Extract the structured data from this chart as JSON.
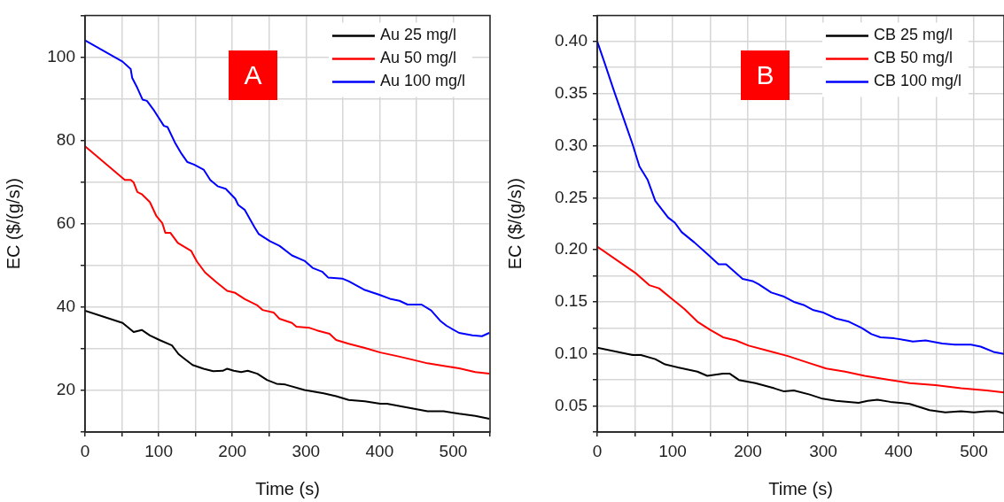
{
  "chart_data": [
    {
      "type": "line",
      "xlabel": "Time (s)",
      "ylabel": "EC ($/(g/s))",
      "annotations": [
        "A"
      ],
      "legend": "top right",
      "grid": true,
      "xlim": [
        0,
        550
      ],
      "ylim": [
        10,
        110
      ],
      "xticks": [
        0,
        {
          "value": 50,
          "label": null
        },
        100,
        {
          "value": 150,
          "label": null
        },
        200,
        {
          "value": 250,
          "label": null
        },
        300,
        {
          "value": 350,
          "label": null
        },
        400,
        {
          "value": 450,
          "label": null
        },
        500,
        {
          "value": 550,
          "label": null
        }
      ],
      "yticks": [
        {
          "value": 10,
          "label": null
        },
        20,
        {
          "value": 30,
          "label": null
        },
        40,
        {
          "value": 50,
          "label": null
        },
        60,
        {
          "value": 70,
          "label": null
        },
        80,
        {
          "value": 90,
          "label": null
        },
        100,
        {
          "value": 110,
          "label": null
        }
      ],
      "series": [
        {
          "name": "Au 25 mg/l",
          "color": "#000000",
          "x": [
            0,
            51,
            66,
            77,
            88,
            101,
            118,
            127,
            135,
            146,
            161,
            174,
            187,
            193,
            202,
            212,
            221,
            234,
            247,
            260,
            272,
            298,
            324,
            341,
            358,
            380,
            401,
            410,
            444,
            465,
            487,
            508,
            530,
            549
          ],
          "values": [
            39.1,
            36.2,
            34,
            34.5,
            33.2,
            32.1,
            30.8,
            28.7,
            27.6,
            26.1,
            25.2,
            24.6,
            24.7,
            25.2,
            24.7,
            24.4,
            24.7,
            24,
            22.5,
            21.6,
            21.4,
            20.1,
            19.3,
            18.6,
            17.7,
            17.4,
            16.8,
            16.8,
            15.7,
            15,
            15,
            14.4,
            13.9,
            13.2
          ]
        },
        {
          "name": "Au 50 mg/l",
          "color": "#ff0000",
          "x": [
            0,
            54,
            62,
            66,
            71,
            77,
            88,
            97,
            105,
            109,
            116,
            126,
            144,
            152,
            163,
            178,
            193,
            204,
            217,
            234,
            241,
            256,
            264,
            281,
            287,
            305,
            315,
            332,
            341,
            358,
            380,
            401,
            422,
            444,
            465,
            487,
            508,
            530,
            549
          ],
          "values": [
            78.6,
            70.5,
            70.5,
            69.9,
            67.6,
            67.1,
            65.2,
            61.8,
            60.1,
            57.8,
            57.8,
            55.4,
            53.5,
            50.9,
            48.3,
            46,
            43.9,
            43.4,
            41.9,
            40.4,
            39.3,
            38.7,
            37.2,
            36.2,
            35.3,
            35,
            34.4,
            33.6,
            32.1,
            31.2,
            30.2,
            29.1,
            28.3,
            27.4,
            26.5,
            25.9,
            25.3,
            24.4,
            24
          ]
        },
        {
          "name": "Au 100 mg/l",
          "color": "#0000ff",
          "x": [
            0,
            51,
            62,
            64,
            71,
            78,
            84,
            94,
            107,
            112,
            122,
            131,
            139,
            148,
            161,
            170,
            180,
            191,
            204,
            208,
            217,
            230,
            236,
            251,
            264,
            281,
            298,
            309,
            322,
            330,
            350,
            358,
            380,
            399,
            414,
            427,
            438,
            457,
            470,
            483,
            491,
            508,
            526,
            539,
            549
          ],
          "values": [
            104,
            98.9,
            97.1,
            95,
            92.6,
            89.8,
            89.5,
            87.1,
            83.5,
            83.2,
            79.5,
            76.8,
            74.8,
            74.2,
            73,
            70.5,
            69,
            68.4,
            66,
            64.5,
            63.3,
            59.2,
            57.5,
            55.8,
            54.7,
            52.4,
            51.1,
            49.4,
            48.5,
            47.1,
            46.8,
            46.2,
            44.1,
            43,
            42,
            41.5,
            40.6,
            40.6,
            39.2,
            36.6,
            35.5,
            33.8,
            33.2,
            33,
            33.8
          ]
        }
      ]
    },
    {
      "type": "line",
      "xlabel": "Time (s)",
      "ylabel": "EC ($/(g/s))",
      "annotations": [
        "B"
      ],
      "legend": "top right",
      "grid": true,
      "xlim": [
        0,
        540
      ],
      "ylim": [
        0.025,
        0.425
      ],
      "xticks": [
        0,
        {
          "value": 50,
          "label": null
        },
        100,
        {
          "value": 150,
          "label": null
        },
        200,
        {
          "value": 250,
          "label": null
        },
        300,
        {
          "value": 350,
          "label": null
        },
        400,
        {
          "value": 450,
          "label": null
        },
        500
      ],
      "yticks": [
        {
          "value": 0.025,
          "label": null
        },
        0.05,
        {
          "value": 0.075,
          "label": null
        },
        {
          "value": 0.1,
          "label": "0.10"
        },
        {
          "value": 0.125,
          "label": null
        },
        0.15,
        {
          "value": 0.175,
          "label": null
        },
        {
          "value": 0.2,
          "label": "0.20"
        },
        {
          "value": 0.225,
          "label": null
        },
        0.25,
        {
          "value": 0.275,
          "label": null
        },
        {
          "value": 0.3,
          "label": "0.30"
        },
        {
          "value": 0.325,
          "label": null
        },
        0.35,
        {
          "value": 0.375,
          "label": null
        },
        {
          "value": 0.4,
          "label": "0.40"
        },
        {
          "value": 0.425,
          "label": null
        }
      ],
      "series": [
        {
          "name": "CB 25 mg/l",
          "color": "#000000",
          "x": [
            0,
            47,
            58,
            77,
            90,
            107,
            133,
            146,
            167,
            176,
            188,
            210,
            235,
            248,
            261,
            282,
            299,
            317,
            347,
            359,
            372,
            389,
            415,
            441,
            462,
            483,
            500,
            517,
            530,
            540
          ],
          "values": [
            0.106,
            0.099,
            0.099,
            0.095,
            0.09,
            0.087,
            0.083,
            0.079,
            0.081,
            0.081,
            0.075,
            0.072,
            0.067,
            0.064,
            0.065,
            0.061,
            0.057,
            0.055,
            0.053,
            0.055,
            0.056,
            0.054,
            0.052,
            0.046,
            0.044,
            0.045,
            0.044,
            0.045,
            0.045,
            0.043
          ]
        },
        {
          "name": "CB 50 mg/l",
          "color": "#ff0000",
          "x": [
            0,
            52,
            69,
            82,
            99,
            116,
            133,
            150,
            167,
            184,
            201,
            227,
            253,
            278,
            304,
            329,
            355,
            389,
            415,
            449,
            483,
            517,
            540
          ],
          "values": [
            0.203,
            0.177,
            0.166,
            0.163,
            0.153,
            0.143,
            0.131,
            0.123,
            0.116,
            0.113,
            0.108,
            0.103,
            0.098,
            0.092,
            0.086,
            0.083,
            0.079,
            0.075,
            0.072,
            0.07,
            0.067,
            0.065,
            0.063
          ]
        },
        {
          "name": "CB 100 mg/l",
          "color": "#0000ff",
          "x": [
            0,
            9,
            22,
            35,
            47,
            56,
            67,
            77,
            94,
            103,
            112,
            129,
            146,
            161,
            171,
            193,
            206,
            214,
            231,
            248,
            261,
            274,
            287,
            299,
            317,
            334,
            351,
            364,
            376,
            394,
            411,
            419,
            436,
            458,
            475,
            496,
            509,
            526,
            540
          ],
          "values": [
            0.4,
            0.381,
            0.353,
            0.326,
            0.301,
            0.28,
            0.267,
            0.247,
            0.231,
            0.226,
            0.217,
            0.207,
            0.196,
            0.186,
            0.186,
            0.172,
            0.17,
            0.167,
            0.159,
            0.155,
            0.15,
            0.147,
            0.142,
            0.14,
            0.134,
            0.131,
            0.125,
            0.119,
            0.116,
            0.115,
            0.113,
            0.112,
            0.113,
            0.11,
            0.109,
            0.109,
            0.107,
            0.102,
            0.1
          ]
        }
      ]
    }
  ]
}
